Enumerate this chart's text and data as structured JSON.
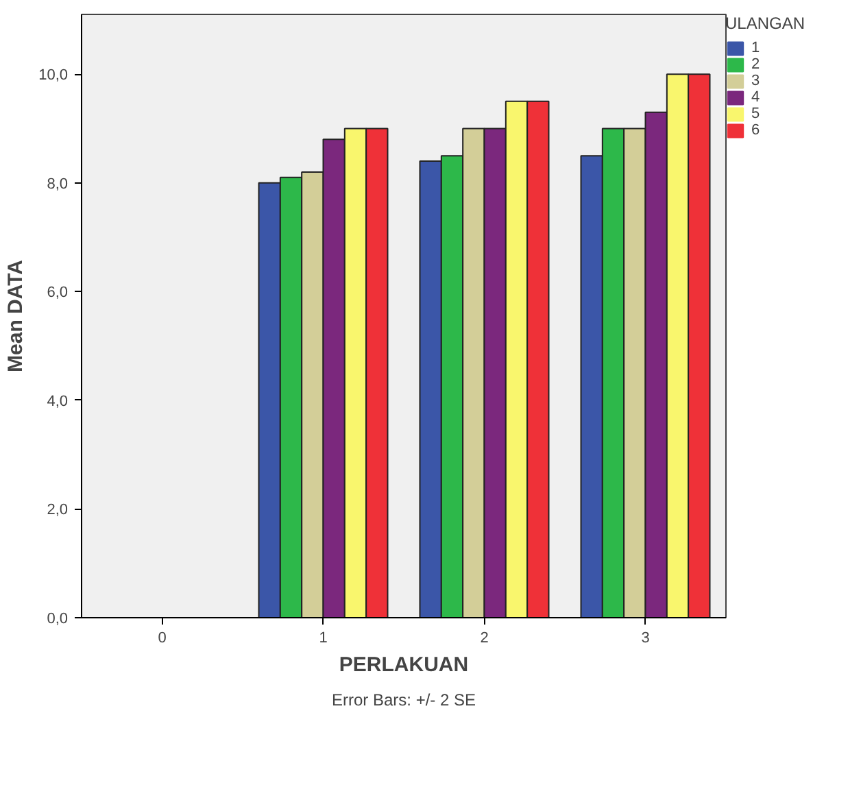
{
  "chart_data": {
    "type": "bar",
    "xlabel": "PERLAKUAN",
    "ylabel": "Mean DATA",
    "legend_title": "ULANGAN",
    "legend": "top right",
    "grid": false,
    "categories": [
      "0",
      "1",
      "2",
      "3"
    ],
    "ylim": [
      0,
      11.1
    ],
    "yticks": [
      {
        "value": 0,
        "label": "0,0"
      },
      {
        "value": 2,
        "label": "2,0"
      },
      {
        "value": 4,
        "label": "4,0"
      },
      {
        "value": 6,
        "label": "6,0"
      },
      {
        "value": 8,
        "label": "8,0"
      },
      {
        "value": 10,
        "label": "10,0"
      }
    ],
    "series": [
      {
        "name": "1",
        "color": "#3b56a8",
        "values": [
          0,
          8.0,
          8.4,
          8.5
        ]
      },
      {
        "name": "2",
        "color": "#2db84a",
        "values": [
          0,
          8.1,
          8.5,
          9.0
        ]
      },
      {
        "name": "3",
        "color": "#d3ce98",
        "values": [
          0,
          8.2,
          9.0,
          9.0
        ]
      },
      {
        "name": "4",
        "color": "#7b287d",
        "values": [
          0,
          8.8,
          9.0,
          9.3
        ]
      },
      {
        "name": "5",
        "color": "#f9f66d",
        "values": [
          0,
          9.0,
          9.5,
          10.0
        ]
      },
      {
        "name": "6",
        "color": "#ef3138",
        "values": [
          0,
          9.0,
          9.5,
          10.0
        ]
      }
    ],
    "annotations": [
      "Error Bars: +/- 2 SE"
    ]
  }
}
